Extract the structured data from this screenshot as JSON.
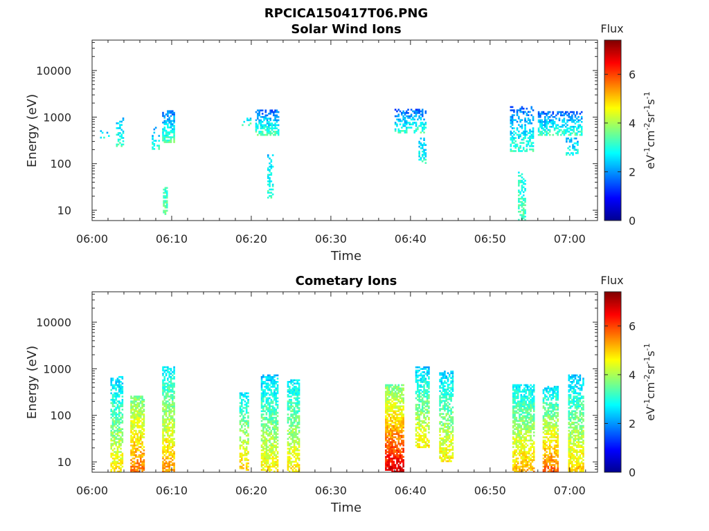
{
  "figure_title": "RPCICA150417T06.PNG",
  "colors": {
    "colormap": [
      "#00008f",
      "#0000ff",
      "#0080ff",
      "#00ffff",
      "#80ff80",
      "#ffff00",
      "#ff8000",
      "#ff0000",
      "#800000"
    ],
    "axis": "#262626",
    "background": "#ffffff"
  },
  "chart_data": [
    {
      "type": "heatmap",
      "title": "Solar Wind Ions",
      "xlabel": "Time",
      "ylabel": "Energy (eV)",
      "x_ticks": [
        "06:00",
        "06:10",
        "06:20",
        "06:30",
        "06:40",
        "06:50",
        "07:00"
      ],
      "x_range_minutes": [
        0,
        63.5
      ],
      "y_scale": "log",
      "y_ticks": [
        "10",
        "100",
        "1000",
        "10000"
      ],
      "y_range": [
        6,
        45000
      ],
      "colorbar": {
        "title": "Flux",
        "label": "eV-1cm-2sr-1s-1",
        "range": [
          0,
          7.4
        ],
        "ticks": [
          "0",
          "2",
          "4",
          "6"
        ]
      },
      "x_fine_unit": "minutes after 06:00",
      "clusters": [
        {
          "t": [
            1.0,
            2.0
          ],
          "e": [
            350,
            500
          ],
          "flux": [
            2.2,
            3.0
          ],
          "density": 0.25
        },
        {
          "t": [
            3.0,
            3.9
          ],
          "e": [
            230,
            950
          ],
          "flux": [
            2.2,
            3.2
          ],
          "density": 0.45
        },
        {
          "t": [
            7.5,
            8.4
          ],
          "e": [
            200,
            600
          ],
          "flux": [
            2.0,
            3.2
          ],
          "density": 0.3
        },
        {
          "t": [
            8.8,
            10.2
          ],
          "e": [
            280,
            1400
          ],
          "flux": [
            1.6,
            3.4
          ],
          "density": 0.6
        },
        {
          "t": [
            8.9,
            9.3
          ],
          "e": [
            8,
            30
          ],
          "flux": [
            3.0,
            3.6
          ],
          "density": 0.8
        },
        {
          "t": [
            18.8,
            19.8
          ],
          "e": [
            600,
            900
          ],
          "flux": [
            2.6,
            3.6
          ],
          "density": 0.4
        },
        {
          "t": [
            20.5,
            23.3
          ],
          "e": [
            400,
            1400
          ],
          "flux": [
            1.6,
            3.4
          ],
          "density": 0.6
        },
        {
          "t": [
            22.0,
            22.6
          ],
          "e": [
            18,
            150
          ],
          "flux": [
            2.4,
            3.2
          ],
          "density": 0.35
        },
        {
          "t": [
            38.0,
            42.0
          ],
          "e": [
            450,
            1400
          ],
          "flux": [
            1.6,
            3.2
          ],
          "density": 0.45
        },
        {
          "t": [
            41.0,
            42.0
          ],
          "e": [
            100,
            350
          ],
          "flux": [
            2.2,
            3.0
          ],
          "density": 0.45
        },
        {
          "t": [
            52.5,
            55.5
          ],
          "e": [
            180,
            1700
          ],
          "flux": [
            1.6,
            3.2
          ],
          "density": 0.4
        },
        {
          "t": [
            53.5,
            54.4
          ],
          "e": [
            6,
            65
          ],
          "flux": [
            2.8,
            3.4
          ],
          "density": 0.5
        },
        {
          "t": [
            56.0,
            61.5
          ],
          "e": [
            400,
            1300
          ],
          "flux": [
            1.6,
            3.2
          ],
          "density": 0.5
        },
        {
          "t": [
            59.5,
            61.0
          ],
          "e": [
            150,
            350
          ],
          "flux": [
            2.2,
            3.0
          ],
          "density": 0.4
        }
      ]
    },
    {
      "type": "heatmap",
      "title": "Cometary Ions",
      "xlabel": "Time",
      "ylabel": "Energy (eV)",
      "x_ticks": [
        "06:00",
        "06:10",
        "06:20",
        "06:30",
        "06:40",
        "06:50",
        "07:00"
      ],
      "x_range_minutes": [
        0,
        63.5
      ],
      "y_scale": "log",
      "y_ticks": [
        "10",
        "100",
        "1000",
        "10000"
      ],
      "y_range": [
        6,
        45000
      ],
      "colorbar": {
        "title": "Flux",
        "label": "eV-1cm-2sr-1s-1",
        "range": [
          0,
          7.4
        ],
        "ticks": [
          "0",
          "2",
          "4",
          "6"
        ]
      },
      "x_fine_unit": "minutes after 06:00",
      "clusters": [
        {
          "t": [
            2.3,
            3.8
          ],
          "e": [
            6,
            650
          ],
          "flux": [
            2.4,
            4.8
          ],
          "density": 0.6
        },
        {
          "t": [
            4.8,
            6.6
          ],
          "e": [
            6,
            250
          ],
          "flux": [
            3.6,
            5.6
          ],
          "density": 0.75
        },
        {
          "t": [
            8.8,
            10.2
          ],
          "e": [
            6,
            1100
          ],
          "flux": [
            2.6,
            5.4
          ],
          "density": 0.7
        },
        {
          "t": [
            18.5,
            19.6
          ],
          "e": [
            6,
            300
          ],
          "flux": [
            2.6,
            5.0
          ],
          "density": 0.55
        },
        {
          "t": [
            21.2,
            23.3
          ],
          "e": [
            6,
            700
          ],
          "flux": [
            2.4,
            4.8
          ],
          "density": 0.7
        },
        {
          "t": [
            24.5,
            26.0
          ],
          "e": [
            6,
            550
          ],
          "flux": [
            2.6,
            4.8
          ],
          "density": 0.65
        },
        {
          "t": [
            36.8,
            39.2
          ],
          "e": [
            6,
            450
          ],
          "flux": [
            3.6,
            6.8
          ],
          "density": 0.8
        },
        {
          "t": [
            40.6,
            42.4
          ],
          "e": [
            20,
            1050
          ],
          "flux": [
            2.4,
            4.8
          ],
          "density": 0.65
        },
        {
          "t": [
            43.6,
            45.3
          ],
          "e": [
            10,
            900
          ],
          "flux": [
            2.4,
            4.8
          ],
          "density": 0.6
        },
        {
          "t": [
            52.8,
            55.6
          ],
          "e": [
            6,
            450
          ],
          "flux": [
            2.6,
            5.2
          ],
          "density": 0.7
        },
        {
          "t": [
            56.6,
            58.6
          ],
          "e": [
            6,
            400
          ],
          "flux": [
            2.6,
            5.8
          ],
          "density": 0.7
        },
        {
          "t": [
            59.8,
            61.8
          ],
          "e": [
            6,
            700
          ],
          "flux": [
            2.4,
            5.0
          ],
          "density": 0.7
        }
      ]
    }
  ]
}
